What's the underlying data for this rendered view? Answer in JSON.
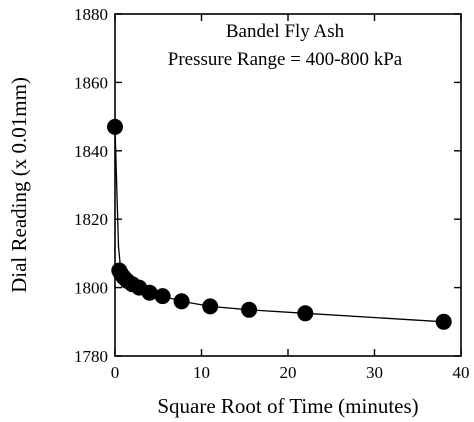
{
  "chart_data": {
    "type": "scatter",
    "title": "",
    "xlabel": "Square Root of Time (minutes)",
    "ylabel": "Dial Reading (x 0.01mm)",
    "xlim": [
      0,
      40
    ],
    "ylim": [
      1780,
      1880
    ],
    "xticks": [
      0,
      10,
      20,
      30,
      40
    ],
    "yticks": [
      1780,
      1800,
      1820,
      1840,
      1860,
      1880
    ],
    "grid": false,
    "annotations": [
      "Bandel Fly Ash",
      "Pressure Range = 400-800 kPa"
    ],
    "series": [
      {
        "points": [
          {
            "x": 0,
            "y": 1847
          },
          {
            "x": 0.5,
            "y": 1805
          },
          {
            "x": 0.7,
            "y": 1804
          },
          {
            "x": 1.0,
            "y": 1803
          },
          {
            "x": 1.4,
            "y": 1802
          },
          {
            "x": 2.0,
            "y": 1801
          },
          {
            "x": 2.8,
            "y": 1800
          },
          {
            "x": 4.0,
            "y": 1798.5
          },
          {
            "x": 5.5,
            "y": 1797.5
          },
          {
            "x": 7.7,
            "y": 1796
          },
          {
            "x": 11.0,
            "y": 1794.5
          },
          {
            "x": 15.5,
            "y": 1793.5
          },
          {
            "x": 22.0,
            "y": 1792.5
          },
          {
            "x": 38.0,
            "y": 1790
          }
        ]
      }
    ],
    "curve": [
      {
        "x": 0.0,
        "y": 1847
      },
      {
        "x": 0.2,
        "y": 1830
      },
      {
        "x": 0.4,
        "y": 1812
      },
      {
        "x": 0.7,
        "y": 1804
      },
      {
        "x": 1.0,
        "y": 1803
      },
      {
        "x": 2.0,
        "y": 1801
      },
      {
        "x": 4.0,
        "y": 1798.5
      },
      {
        "x": 7.7,
        "y": 1796
      },
      {
        "x": 11.0,
        "y": 1794.5
      },
      {
        "x": 15.5,
        "y": 1793.5
      },
      {
        "x": 22.0,
        "y": 1792.5
      },
      {
        "x": 38.0,
        "y": 1790
      }
    ]
  }
}
